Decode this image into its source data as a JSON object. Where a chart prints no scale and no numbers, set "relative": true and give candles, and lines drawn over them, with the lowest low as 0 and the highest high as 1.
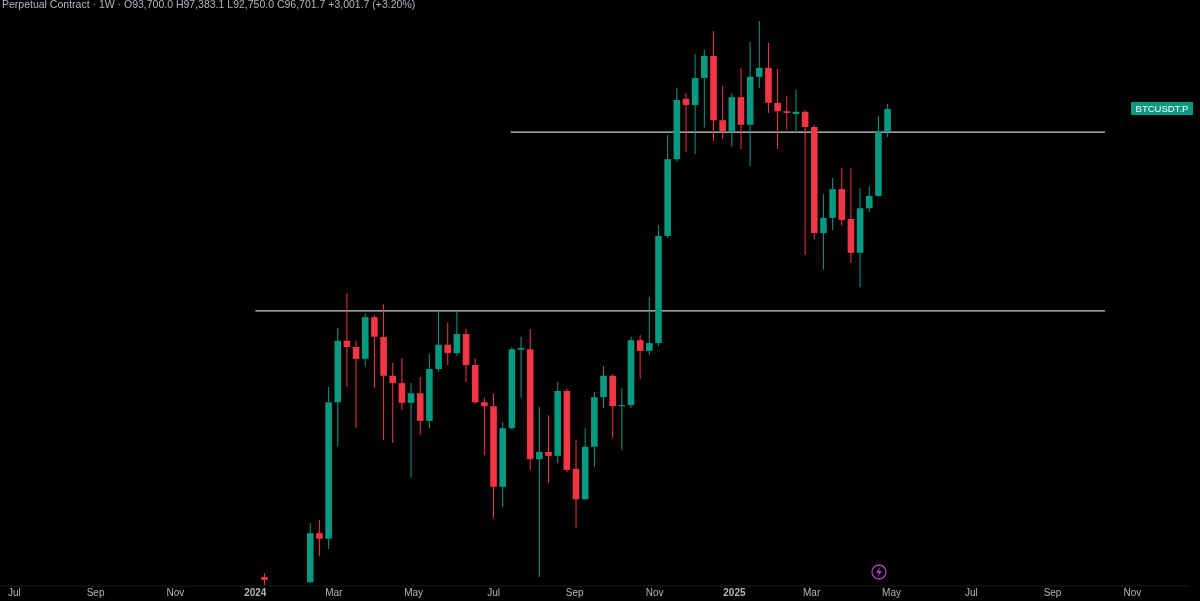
{
  "chart_data": {
    "type": "candlestick",
    "title": "Perpetual Contract · 1W · O93,700.0 H97,383.1 L92,750.0 C96,701.7 +3,001.7 (+3.20%)",
    "relative": true,
    "tick_labels": "x",
    "xlim": [
      "2023-06-20",
      "2025-12-15"
    ],
    "xticks": [
      {
        "value": "2023-07-01",
        "label": "Jul"
      },
      {
        "value": "2023-09-01",
        "label": "Sep"
      },
      {
        "value": "2023-11-01",
        "label": "Nov"
      },
      {
        "value": "2024-01-01",
        "label": "2024"
      },
      {
        "value": "2024-03-01",
        "label": "Mar"
      },
      {
        "value": "2024-05-01",
        "label": "May"
      },
      {
        "value": "2024-07-01",
        "label": "Jul"
      },
      {
        "value": "2024-09-01",
        "label": "Sep"
      },
      {
        "value": "2024-11-01",
        "label": "Nov"
      },
      {
        "value": "2025-01-01",
        "label": "2025"
      },
      {
        "value": "2025-03-01",
        "label": "Mar"
      },
      {
        "value": "2025-05-01",
        "label": "May"
      },
      {
        "value": "2025-07-01",
        "label": "Jul"
      },
      {
        "value": "2025-09-01",
        "label": "Sep"
      },
      {
        "value": "2025-11-01",
        "label": "Nov"
      }
    ],
    "x": [
      "2024-01-08",
      "2024-02-12",
      "2024-02-19",
      "2024-02-26",
      "2024-03-04",
      "2024-03-11",
      "2024-03-18",
      "2024-03-25",
      "2024-04-01",
      "2024-04-08",
      "2024-04-15",
      "2024-04-22",
      "2024-04-29",
      "2024-05-06",
      "2024-05-13",
      "2024-05-20",
      "2024-05-27",
      "2024-06-03",
      "2024-06-10",
      "2024-06-17",
      "2024-06-24",
      "2024-07-01",
      "2024-07-08",
      "2024-07-15",
      "2024-07-22",
      "2024-07-29",
      "2024-08-05",
      "2024-08-12",
      "2024-08-19",
      "2024-08-26",
      "2024-09-02",
      "2024-09-09",
      "2024-09-16",
      "2024-09-23",
      "2024-09-30",
      "2024-10-07",
      "2024-10-14",
      "2024-10-21",
      "2024-10-28",
      "2024-11-04",
      "2024-11-11",
      "2024-11-18",
      "2024-11-25",
      "2024-12-02",
      "2024-12-09",
      "2024-12-16",
      "2024-12-23",
      "2024-12-30",
      "2025-01-06",
      "2025-01-13",
      "2025-01-20",
      "2025-01-27",
      "2025-02-03",
      "2025-02-10",
      "2025-02-17",
      "2025-02-24",
      "2025-03-03",
      "2025-03-10",
      "2025-03-17",
      "2025-03-24",
      "2025-03-31",
      "2025-04-07",
      "2025-04-14",
      "2025-04-21",
      "2025-04-28"
    ],
    "ohlc": [
      [
        0.014,
        0.021,
        0,
        0.009
      ],
      [
        0.005,
        0.11,
        0.004,
        0.092
      ],
      [
        0.092,
        0.115,
        0.051,
        0.082
      ],
      [
        0.082,
        0.351,
        0.064,
        0.324
      ],
      [
        0.324,
        0.456,
        0.245,
        0.433
      ],
      [
        0.433,
        0.518,
        0.351,
        0.422
      ],
      [
        0.422,
        0.433,
        0.278,
        0.401
      ],
      [
        0.401,
        0.482,
        0.387,
        0.475
      ],
      [
        0.475,
        0.479,
        0.349,
        0.44
      ],
      [
        0.44,
        0.498,
        0.257,
        0.371
      ],
      [
        0.371,
        0.394,
        0.252,
        0.358
      ],
      [
        0.358,
        0.402,
        0.31,
        0.323
      ],
      [
        0.323,
        0.358,
        0.19,
        0.34
      ],
      [
        0.34,
        0.369,
        0.266,
        0.291
      ],
      [
        0.291,
        0.41,
        0.278,
        0.383
      ],
      [
        0.383,
        0.484,
        0.378,
        0.426
      ],
      [
        0.426,
        0.465,
        0.39,
        0.411
      ],
      [
        0.411,
        0.484,
        0.406,
        0.445
      ],
      [
        0.445,
        0.454,
        0.36,
        0.39
      ],
      [
        0.39,
        0.402,
        0.321,
        0.324
      ],
      [
        0.324,
        0.332,
        0.23,
        0.317
      ],
      [
        0.317,
        0.339,
        0.119,
        0.174
      ],
      [
        0.174,
        0.289,
        0.138,
        0.278
      ],
      [
        0.278,
        0.422,
        0.275,
        0.418
      ],
      [
        0.417,
        0.44,
        0.332,
        0.42
      ],
      [
        0.418,
        0.454,
        0.204,
        0.223
      ],
      [
        0.223,
        0.316,
        0.014,
        0.236
      ],
      [
        0.236,
        0.301,
        0.181,
        0.229
      ],
      [
        0.229,
        0.36,
        0.216,
        0.344
      ],
      [
        0.344,
        0.348,
        0.2,
        0.204
      ],
      [
        0.206,
        0.257,
        0.101,
        0.152
      ],
      [
        0.152,
        0.278,
        0.151,
        0.245
      ],
      [
        0.245,
        0.342,
        0.209,
        0.333
      ],
      [
        0.333,
        0.388,
        0.314,
        0.371
      ],
      [
        0.371,
        0.374,
        0.261,
        0.317
      ],
      [
        0.317,
        0.349,
        0.239,
        0.319
      ],
      [
        0.319,
        0.44,
        0.314,
        0.434
      ],
      [
        0.434,
        0.443,
        0.365,
        0.415
      ],
      [
        0.415,
        0.511,
        0.408,
        0.429
      ],
      [
        0.429,
        0.638,
        0.424,
        0.619
      ],
      [
        0.619,
        0.798,
        0.615,
        0.755
      ],
      [
        0.755,
        0.881,
        0.75,
        0.86
      ],
      [
        0.862,
        0.872,
        0.768,
        0.851
      ],
      [
        0.851,
        0.941,
        0.764,
        0.899
      ],
      [
        0.899,
        0.949,
        0.81,
        0.938
      ],
      [
        0.938,
        0.982,
        0.787,
        0.824
      ],
      [
        0.824,
        0.885,
        0.791,
        0.805
      ],
      [
        0.805,
        0.872,
        0.777,
        0.865
      ],
      [
        0.865,
        0.917,
        0.773,
        0.816
      ],
      [
        0.816,
        0.963,
        0.743,
        0.901
      ],
      [
        0.901,
        1,
        0.881,
        0.917
      ],
      [
        0.917,
        0.961,
        0.837,
        0.855
      ],
      [
        0.855,
        0.915,
        0.773,
        0.84
      ],
      [
        0.84,
        0.867,
        0.807,
        0.837
      ],
      [
        0.835,
        0.879,
        0.801,
        0.839
      ],
      [
        0.839,
        0.842,
        0.585,
        0.812
      ],
      [
        0.812,
        0.816,
        0.613,
        0.624
      ],
      [
        0.624,
        0.693,
        0.559,
        0.651
      ],
      [
        0.651,
        0.722,
        0.629,
        0.702
      ],
      [
        0.702,
        0.739,
        0.637,
        0.647
      ],
      [
        0.649,
        0.739,
        0.571,
        0.589
      ],
      [
        0.589,
        0.704,
        0.528,
        0.668
      ],
      [
        0.668,
        0.707,
        0.661,
        0.69
      ],
      [
        0.69,
        0.832,
        0.688,
        0.805
      ],
      [
        0.805,
        0.853,
        0.794,
        0.844
      ]
    ],
    "colors": [
      "#f23645",
      "#089981",
      "#f23645",
      "#089981",
      "#089981",
      "#f23645",
      "#f23645",
      "#089981",
      "#f23645",
      "#f23645",
      "#f23645",
      "#f23645",
      "#089981",
      "#f23645",
      "#089981",
      "#089981",
      "#f23645",
      "#089981",
      "#f23645",
      "#f23645",
      "#f23645",
      "#f23645",
      "#089981",
      "#089981",
      "#089981",
      "#f23645",
      "#089981",
      "#f23645",
      "#089981",
      "#f23645",
      "#f23645",
      "#089981",
      "#089981",
      "#089981",
      "#f23645",
      "#089981",
      "#089981",
      "#f23645",
      "#089981",
      "#089981",
      "#089981",
      "#089981",
      "#f23645",
      "#089981",
      "#089981",
      "#f23645",
      "#f23645",
      "#089981",
      "#f23645",
      "#089981",
      "#089981",
      "#f23645",
      "#f23645",
      "#f23645",
      "#089981",
      "#f23645",
      "#f23645",
      "#089981",
      "#089981",
      "#f23645",
      "#f23645",
      "#089981",
      "#089981",
      "#089981",
      "#089981"
    ],
    "series": [
      {
        "type": "line",
        "color": "#d1d4dc",
        "x": [
          "2024-07-14",
          "2025-10-11"
        ],
        "values": [
          0.803,
          0.803
        ]
      },
      {
        "type": "line",
        "color": "#d1d4dc",
        "x": [
          "2024-01-01",
          "2025-10-11"
        ],
        "values": [
          0.486,
          0.486
        ]
      }
    ],
    "annotations": [
      "BTCUSDT.P"
    ]
  }
}
